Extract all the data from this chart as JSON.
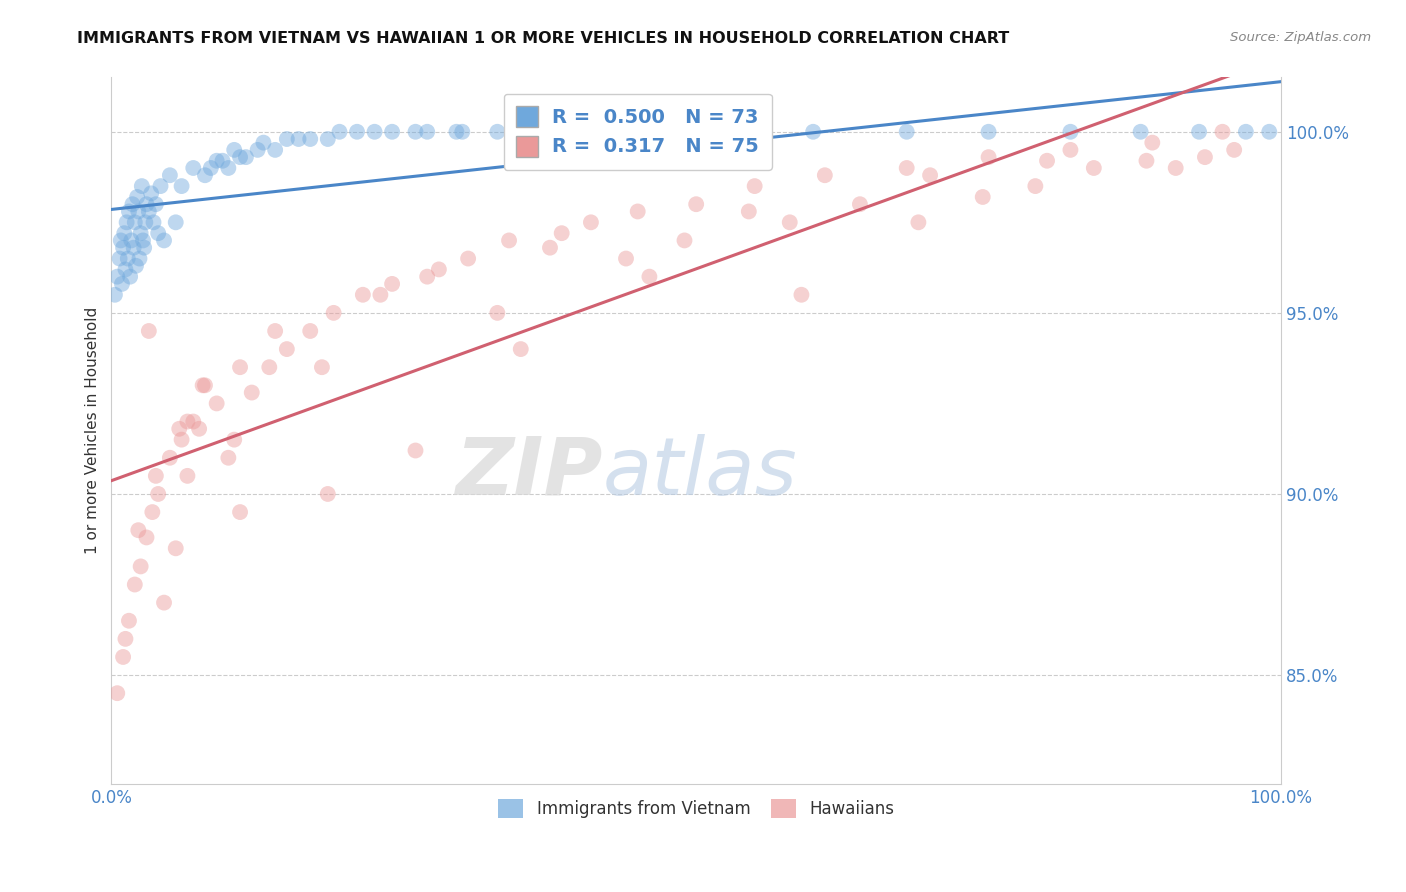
{
  "title": "IMMIGRANTS FROM VIETNAM VS HAWAIIAN 1 OR MORE VEHICLES IN HOUSEHOLD CORRELATION CHART",
  "source": "Source: ZipAtlas.com",
  "ylabel": "1 or more Vehicles in Household",
  "blue_r": 0.5,
  "blue_n": 73,
  "pink_r": 0.317,
  "pink_n": 75,
  "xmin": 0.0,
  "xmax": 100.0,
  "ymin": 82.0,
  "ymax": 101.5,
  "right_yticks": [
    85.0,
    90.0,
    95.0,
    100.0
  ],
  "blue_color": "#6fa8dc",
  "pink_color": "#ea9999",
  "blue_line_color": "#4a86c8",
  "pink_line_color": "#d06070",
  "legend_series": [
    "Immigrants from Vietnam",
    "Hawaiians"
  ],
  "blue_scatter_x": [
    0.3,
    0.5,
    0.7,
    0.8,
    0.9,
    1.0,
    1.1,
    1.2,
    1.3,
    1.4,
    1.5,
    1.6,
    1.7,
    1.8,
    1.9,
    2.0,
    2.1,
    2.2,
    2.3,
    2.4,
    2.5,
    2.6,
    2.7,
    2.8,
    2.9,
    3.0,
    3.2,
    3.4,
    3.6,
    3.8,
    4.0,
    4.2,
    4.5,
    5.0,
    5.5,
    6.0,
    7.0,
    8.0,
    9.0,
    10.0,
    11.0,
    12.5,
    14.0,
    16.0,
    18.5,
    21.0,
    24.0,
    27.0,
    30.0,
    8.5,
    9.5,
    10.5,
    11.5,
    13.0,
    15.0,
    17.0,
    19.5,
    22.5,
    26.0,
    29.5,
    33.0,
    37.0,
    42.0,
    47.0,
    53.0,
    60.0,
    68.0,
    75.0,
    82.0,
    88.0,
    93.0,
    97.0,
    99.0
  ],
  "blue_scatter_y": [
    95.5,
    96.0,
    96.5,
    97.0,
    95.8,
    96.8,
    97.2,
    96.2,
    97.5,
    96.5,
    97.8,
    96.0,
    97.0,
    98.0,
    96.8,
    97.5,
    96.3,
    98.2,
    97.8,
    96.5,
    97.2,
    98.5,
    97.0,
    96.8,
    97.5,
    98.0,
    97.8,
    98.3,
    97.5,
    98.0,
    97.2,
    98.5,
    97.0,
    98.8,
    97.5,
    98.5,
    99.0,
    98.8,
    99.2,
    99.0,
    99.3,
    99.5,
    99.5,
    99.8,
    99.8,
    100.0,
    100.0,
    100.0,
    100.0,
    99.0,
    99.2,
    99.5,
    99.3,
    99.7,
    99.8,
    99.8,
    100.0,
    100.0,
    100.0,
    100.0,
    100.0,
    100.0,
    100.0,
    100.0,
    100.0,
    100.0,
    100.0,
    100.0,
    100.0,
    100.0,
    100.0,
    100.0,
    100.0
  ],
  "pink_scatter_x": [
    0.5,
    1.0,
    1.5,
    2.0,
    2.5,
    3.0,
    3.5,
    4.0,
    4.5,
    5.0,
    5.5,
    6.0,
    6.5,
    7.0,
    7.5,
    8.0,
    9.0,
    10.0,
    11.0,
    12.0,
    13.5,
    15.0,
    17.0,
    19.0,
    21.5,
    24.0,
    27.0,
    30.5,
    34.0,
    37.5,
    41.0,
    45.0,
    50.0,
    55.0,
    61.0,
    68.0,
    75.0,
    82.0,
    89.0,
    95.0,
    1.2,
    2.3,
    3.8,
    5.8,
    7.8,
    10.5,
    14.0,
    18.0,
    23.0,
    28.0,
    33.0,
    38.5,
    44.0,
    49.0,
    54.5,
    59.0,
    64.0,
    69.0,
    74.5,
    79.0,
    84.0,
    88.5,
    91.0,
    93.5,
    96.0,
    3.2,
    6.5,
    11.0,
    18.5,
    26.0,
    35.0,
    46.0,
    58.0,
    70.0,
    80.0
  ],
  "pink_scatter_y": [
    84.5,
    85.5,
    86.5,
    87.5,
    88.0,
    88.8,
    89.5,
    90.0,
    87.0,
    91.0,
    88.5,
    91.5,
    90.5,
    92.0,
    91.8,
    93.0,
    92.5,
    91.0,
    93.5,
    92.8,
    93.5,
    94.0,
    94.5,
    95.0,
    95.5,
    95.8,
    96.0,
    96.5,
    97.0,
    96.8,
    97.5,
    97.8,
    98.0,
    98.5,
    98.8,
    99.0,
    99.3,
    99.5,
    99.7,
    100.0,
    86.0,
    89.0,
    90.5,
    91.8,
    93.0,
    91.5,
    94.5,
    93.5,
    95.5,
    96.2,
    95.0,
    97.2,
    96.5,
    97.0,
    97.8,
    95.5,
    98.0,
    97.5,
    98.2,
    98.5,
    99.0,
    99.2,
    99.0,
    99.3,
    99.5,
    94.5,
    92.0,
    89.5,
    90.0,
    91.2,
    94.0,
    96.0,
    97.5,
    98.8,
    99.2
  ]
}
